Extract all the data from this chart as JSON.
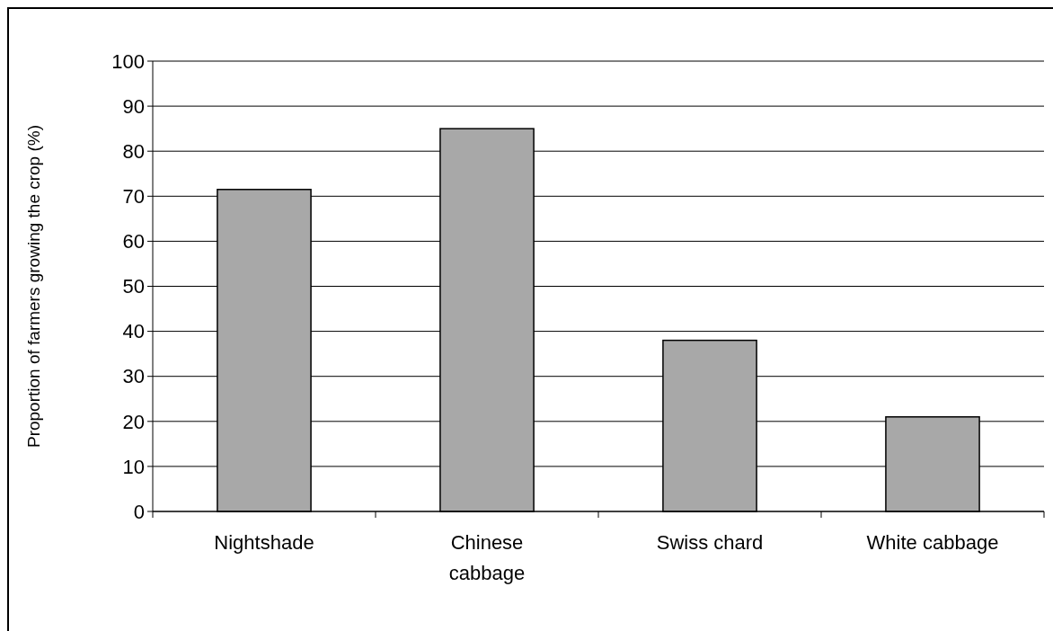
{
  "chart_data": {
    "type": "bar",
    "ylabel": "Proportion of farmers growing the crop (%)",
    "categories": [
      "Nightshade",
      "Chinese cabbage",
      "Swiss chard",
      "White cabbage"
    ],
    "values": [
      71.5,
      85,
      38,
      21
    ],
    "color": "#a8a8a8",
    "ylim": [
      0,
      100
    ],
    "yticks": [
      0,
      10,
      20,
      30,
      40,
      50,
      60,
      70,
      80,
      90,
      100
    ],
    "grid": "y"
  }
}
